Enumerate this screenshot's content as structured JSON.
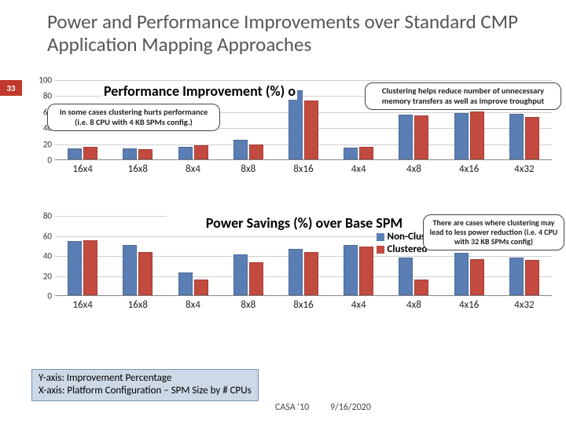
{
  "slide": {
    "title": "Power and Performance Improvements over Standard CMP Application Mapping Approaches",
    "number": "33"
  },
  "colors": {
    "series_nonclustered": "#5a7eb4",
    "series_clustered": "#c24a3f",
    "grid": "#d0d0d0",
    "background": "#ffffff"
  },
  "chart_perf": {
    "title_text": "Performance Improvement (%) o",
    "ylim": [
      0,
      100
    ],
    "ytick_step": 20,
    "categories": [
      "16x4",
      "16x8",
      "8x4",
      "8x8",
      "8x16",
      "4x4",
      "4x8",
      "4x16",
      "4x32"
    ],
    "nonclustered": [
      14,
      14,
      16,
      25,
      86,
      15,
      56,
      58,
      57
    ],
    "clustered": [
      16,
      13,
      18,
      19,
      74,
      16,
      55,
      60,
      53
    ]
  },
  "chart_power": {
    "title_text": "Power Savings (%) over Base SPM",
    "ylim": [
      0,
      80
    ],
    "ytick_step": 20,
    "categories": [
      "16x4",
      "16x8",
      "8x4",
      "8x8",
      "8x16",
      "4x4",
      "4x8",
      "4x16",
      "4x32"
    ],
    "nonclustered": [
      54,
      50,
      23,
      41,
      46,
      50,
      38,
      42,
      38
    ],
    "clustered": [
      55,
      43,
      16,
      33,
      43,
      49,
      16,
      36,
      35
    ]
  },
  "legend": {
    "items": [
      {
        "label": "Non-Clustered",
        "color": "#5a7eb4"
      },
      {
        "label": "Clustered",
        "color": "#c24a3f"
      }
    ]
  },
  "callouts": {
    "c1": "In some cases clustering hurts performance (i.e. 8 CPU with 4 KB SPMs config.)",
    "c2": "Clustering helps reduce number of unnecessary memory transfers as well as improve troughput",
    "c3": "There are cases where clustering may lead to less power reduction (i.e. 4 CPU with 32 KB SPMs config)"
  },
  "footnote": {
    "line1": "Y-axis: Improvement Percentage",
    "line2": "X-axis: Platform Configuration – SPM Size by # CPUs"
  },
  "footer": {
    "conf": "CASA '10",
    "date": "9/16/2020"
  }
}
